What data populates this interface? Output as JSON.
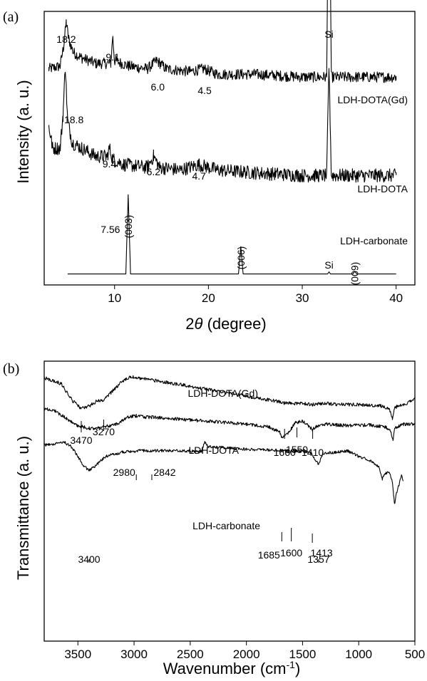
{
  "chart_data": [
    {
      "panel_label": "(a)",
      "type": "line",
      "xlabel": "2θ (degree)",
      "xlabel_prefix": "2",
      "xlabel_var": "θ",
      "xlabel_suffix": " (degree)",
      "ylabel": "Intensity (a. u.)",
      "xlim": [
        2.5,
        42
      ],
      "xticks": [
        10,
        20,
        30,
        40
      ],
      "xtick_labels": [
        "10",
        "20",
        "30",
        "40"
      ],
      "yaxis_ticks": false,
      "grid": false,
      "series": [
        {
          "name": "LDH-DOTA(Gd)",
          "baseline": 0.8,
          "noise": 0.02,
          "points": [
            [
              3.0,
              0.79
            ],
            [
              4.2,
              0.8
            ],
            [
              4.6,
              0.88
            ],
            [
              4.85,
              0.96
            ],
            [
              5.1,
              0.9
            ],
            [
              5.6,
              0.85
            ],
            [
              6.5,
              0.83
            ],
            [
              8.0,
              0.81
            ],
            [
              9.6,
              0.81
            ],
            [
              9.8,
              0.91
            ],
            [
              10.0,
              0.82
            ],
            [
              11.5,
              0.8
            ],
            [
              13.5,
              0.79
            ],
            [
              14.5,
              0.82
            ],
            [
              15.5,
              0.79
            ],
            [
              18.0,
              0.78
            ],
            [
              19.5,
              0.79
            ],
            [
              21.0,
              0.77
            ],
            [
              25.0,
              0.77
            ],
            [
              30.0,
              0.76
            ],
            [
              32.6,
              0.76
            ],
            [
              32.85,
              1.7
            ],
            [
              33.1,
              0.76
            ],
            [
              36.0,
              0.76
            ],
            [
              40.0,
              0.76
            ]
          ],
          "peak_labels": [
            {
              "x": 4.85,
              "label": "18.2"
            },
            {
              "x": 9.8,
              "label": "9.1"
            },
            {
              "x": 14.6,
              "label": "6.0"
            },
            {
              "x": 19.6,
              "label": "4.5"
            }
          ]
        },
        {
          "name": "LDH-DOTA",
          "baseline": 0.5,
          "noise": 0.025,
          "points": [
            [
              3.0,
              0.58
            ],
            [
              3.4,
              0.5
            ],
            [
              4.2,
              0.5
            ],
            [
              4.5,
              0.62
            ],
            [
              4.75,
              0.8
            ],
            [
              5.0,
              0.6
            ],
            [
              5.5,
              0.52
            ],
            [
              6.5,
              0.5
            ],
            [
              8.0,
              0.47
            ],
            [
              9.2,
              0.47
            ],
            [
              9.45,
              0.5
            ],
            [
              9.8,
              0.46
            ],
            [
              11.0,
              0.44
            ],
            [
              13.5,
              0.43
            ],
            [
              14.15,
              0.47
            ],
            [
              14.8,
              0.43
            ],
            [
              17.0,
              0.42
            ],
            [
              19.0,
              0.44
            ],
            [
              21.0,
              0.42
            ],
            [
              25.0,
              0.41
            ],
            [
              30.0,
              0.4
            ],
            [
              32.6,
              0.4
            ],
            [
              32.85,
              0.8
            ],
            [
              33.1,
              0.4
            ],
            [
              36.0,
              0.4
            ],
            [
              40.0,
              0.4
            ]
          ],
          "peak_labels": [
            {
              "x": 4.75,
              "label": "18.8"
            },
            {
              "x": 9.45,
              "label": "9.4"
            },
            {
              "x": 14.15,
              "label": "6.2"
            },
            {
              "x": 19.0,
              "label": "4.7"
            }
          ]
        },
        {
          "name": "LDH-carbonate",
          "baseline": 0.04,
          "noise": 0.0,
          "points": [
            [
              5.0,
              0.04
            ],
            [
              11.2,
              0.04
            ],
            [
              11.45,
              0.33
            ],
            [
              11.7,
              0.04
            ],
            [
              23.2,
              0.04
            ],
            [
              23.45,
              0.14
            ],
            [
              23.7,
              0.04
            ],
            [
              32.7,
              0.04
            ],
            [
              32.85,
              0.048
            ],
            [
              33.0,
              0.04
            ],
            [
              35.4,
              0.04
            ],
            [
              35.6,
              0.05
            ],
            [
              35.8,
              0.04
            ],
            [
              40.0,
              0.04
            ]
          ],
          "peak_labels": [
            {
              "x": 11.45,
              "label": "7.56"
            }
          ]
        }
      ],
      "annotations": [
        {
          "text": "Si",
          "x": 32.85
        },
        {
          "text": "Si",
          "x": 32.85
        },
        {
          "text": "(003)",
          "x": 11.45
        },
        {
          "text": "(006)",
          "x": 23.45
        },
        {
          "text": "(009)",
          "x": 35.6
        }
      ]
    },
    {
      "panel_label": "(b)",
      "type": "line",
      "xlabel": "Wavenumber (cm-1)",
      "xlabel_text": "Wavenumber (cm",
      "xlabel_sup": "-1",
      "xlabel_close": ")",
      "ylabel": "Transmittance (a. u.)",
      "xlim": [
        3800,
        500
      ],
      "xticks": [
        3500,
        3000,
        2500,
        2000,
        1500,
        1000,
        500
      ],
      "xtick_labels": [
        "3500",
        "3000",
        "2500",
        "2000",
        "1500",
        "1000",
        "500"
      ],
      "yaxis_ticks": false,
      "grid": false,
      "series": [
        {
          "name": "LDH-DOTA(Gd)",
          "noise": 0.006,
          "points": [
            [
              3800,
              0.94
            ],
            [
              3650,
              0.92
            ],
            [
              3550,
              0.86
            ],
            [
              3470,
              0.83
            ],
            [
              3400,
              0.84
            ],
            [
              3320,
              0.86
            ],
            [
              3270,
              0.86
            ],
            [
              3200,
              0.89
            ],
            [
              3100,
              0.93
            ],
            [
              3030,
              0.945
            ],
            [
              2950,
              0.94
            ],
            [
              2500,
              0.91
            ],
            [
              2000,
              0.875
            ],
            [
              1700,
              0.855
            ],
            [
              1660,
              0.85
            ],
            [
              1600,
              0.85
            ],
            [
              1550,
              0.847
            ],
            [
              1500,
              0.85
            ],
            [
              1410,
              0.845
            ],
            [
              1300,
              0.85
            ],
            [
              1200,
              0.845
            ],
            [
              1000,
              0.845
            ],
            [
              800,
              0.84
            ],
            [
              730,
              0.83
            ],
            [
              700,
              0.795
            ],
            [
              680,
              0.835
            ],
            [
              600,
              0.845
            ],
            [
              520,
              0.86
            ],
            [
              500,
              0.87
            ]
          ],
          "peak_labels": [
            {
              "x": 3470,
              "label": "3470"
            },
            {
              "x": 3270,
              "label": "3270"
            },
            {
              "x": 1660,
              "label": "1660"
            },
            {
              "x": 1550,
              "label": "1550"
            },
            {
              "x": 1410,
              "label": "1410"
            }
          ]
        },
        {
          "name": "LDH-DOTA",
          "noise": 0.006,
          "points": [
            [
              3800,
              0.83
            ],
            [
              3700,
              0.82
            ],
            [
              3600,
              0.795
            ],
            [
              3500,
              0.77
            ],
            [
              3400,
              0.76
            ],
            [
              3300,
              0.762
            ],
            [
              3150,
              0.775
            ],
            [
              3050,
              0.8
            ],
            [
              2980,
              0.805
            ],
            [
              2900,
              0.8
            ],
            [
              2842,
              0.8
            ],
            [
              2500,
              0.79
            ],
            [
              2000,
              0.775
            ],
            [
              1800,
              0.765
            ],
            [
              1700,
              0.745
            ],
            [
              1685,
              0.725
            ],
            [
              1630,
              0.74
            ],
            [
              1600,
              0.76
            ],
            [
              1560,
              0.78
            ],
            [
              1500,
              0.785
            ],
            [
              1450,
              0.77
            ],
            [
              1413,
              0.755
            ],
            [
              1380,
              0.765
            ],
            [
              1300,
              0.775
            ],
            [
              1200,
              0.772
            ],
            [
              1100,
              0.77
            ],
            [
              900,
              0.772
            ],
            [
              760,
              0.765
            ],
            [
              720,
              0.755
            ],
            [
              695,
              0.715
            ],
            [
              680,
              0.76
            ],
            [
              600,
              0.775
            ],
            [
              500,
              0.775
            ]
          ],
          "peak_labels": [
            {
              "x": 2980,
              "label": "2980"
            },
            {
              "x": 2842,
              "label": "2842"
            },
            {
              "x": 1685,
              "label": "1685"
            },
            {
              "x": 1600,
              "label": "1600"
            },
            {
              "x": 1413,
              "label": "1413"
            }
          ]
        },
        {
          "name": "LDH-carbonate",
          "noise": 0.005,
          "points": [
            [
              3800,
              0.7
            ],
            [
              3700,
              0.705
            ],
            [
              3620,
              0.71
            ],
            [
              3560,
              0.695
            ],
            [
              3500,
              0.66
            ],
            [
              3450,
              0.625
            ],
            [
              3400,
              0.61
            ],
            [
              3350,
              0.625
            ],
            [
              3250,
              0.66
            ],
            [
              3100,
              0.675
            ],
            [
              2950,
              0.68
            ],
            [
              2700,
              0.68
            ],
            [
              2400,
              0.678
            ],
            [
              2370,
              0.71
            ],
            [
              2340,
              0.695
            ],
            [
              2000,
              0.685
            ],
            [
              1800,
              0.683
            ],
            [
              1600,
              0.68
            ],
            [
              1480,
              0.678
            ],
            [
              1420,
              0.67
            ],
            [
              1357,
              0.63
            ],
            [
              1320,
              0.67
            ],
            [
              1200,
              0.675
            ],
            [
              1100,
              0.68
            ],
            [
              1000,
              0.66
            ],
            [
              900,
              0.645
            ],
            [
              820,
              0.62
            ],
            [
              790,
              0.58
            ],
            [
              760,
              0.6
            ],
            [
              730,
              0.605
            ],
            [
              700,
              0.57
            ],
            [
              690,
              0.52
            ],
            [
              680,
              0.49
            ],
            [
              670,
              0.52
            ],
            [
              640,
              0.56
            ],
            [
              620,
              0.595
            ],
            [
              605,
              0.57
            ]
          ],
          "peak_labels": [
            {
              "x": 3400,
              "label": "3400"
            },
            {
              "x": 1357,
              "label": "1357"
            }
          ]
        }
      ]
    }
  ]
}
